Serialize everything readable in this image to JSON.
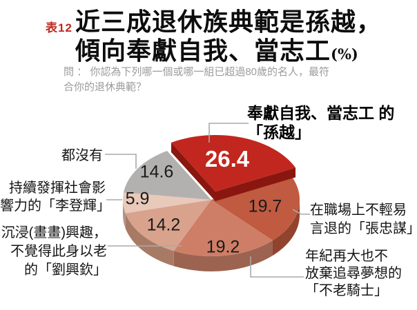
{
  "header": {
    "tag": "表12",
    "title_line1": "近三成退休族典範是孫越，",
    "title_line2": "傾向奉獻自我、當志工",
    "title_unit": "(%)",
    "question_line1": "問 ： 你認為下列哪一個或哪一組已超過80歲的名人，最符",
    "question_line2": "合你的退休典範？"
  },
  "chart_data": {
    "type": "pie",
    "title": "近三成退休族典範是孫越，傾向奉獻自我、當志工(%)",
    "unit": "%",
    "start_angle_deg": 120,
    "direction": "clockwise",
    "style": "3d-exploded",
    "slices": [
      {
        "name": "奉獻自我、當志工的「孫越」",
        "label_lines": [
          "奉獻自我、當志工",
          "的「孫越」"
        ],
        "value": 26.4,
        "color": "#c1271e",
        "side_color": "#8a170f",
        "exploded": true
      },
      {
        "name": "在職場上不輕易言退的「張忠謀」",
        "label_lines": [
          "在職場上不輕易",
          "言退的「張忠謀」"
        ],
        "value": 19.7,
        "color": "#c05a40",
        "side_color": "#92432e",
        "exploded": false
      },
      {
        "name": "年紀再大也不放棄追尋夢想的「不老騎士」",
        "label_lines": [
          "年紀再大也不",
          "放棄追尋夢想的",
          "「不老騎士」"
        ],
        "value": 19.2,
        "color": "#ce7e66",
        "side_color": "#9c6350",
        "exploded": false
      },
      {
        "name": "沉浸(畫畫)興趣，不覺得此身以老的「劉興欽」",
        "label_lines": [
          "沉浸(畫畫)興趣，",
          "不覺得此身以老",
          "的「劉興欽」"
        ],
        "value": 14.2,
        "color": "#d9a28d",
        "side_color": "#a87a66",
        "exploded": false
      },
      {
        "name": "持續發揮社會影響力的「李登輝」",
        "label_lines": [
          "持續發揮社會影",
          "響力的「李登輝」"
        ],
        "value": 5.9,
        "color": "#e8c9ba",
        "side_color": "#b29384",
        "exploded": false
      },
      {
        "name": "都沒有",
        "label_lines": [
          "都沒有"
        ],
        "value": 14.6,
        "color": "#b3b1af",
        "side_color": "#8e8c8a",
        "exploded": false
      }
    ],
    "callout_line_color": "#a9a9a9"
  }
}
